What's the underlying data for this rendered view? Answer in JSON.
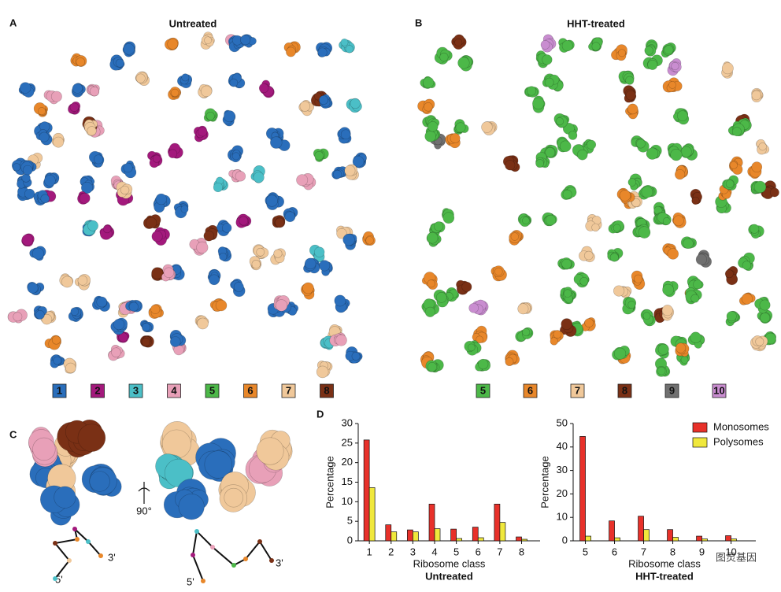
{
  "panels": {
    "A": {
      "label": "A",
      "title": "Untreated",
      "legend": [
        {
          "label": "1",
          "color": "#2a6ebb"
        },
        {
          "label": "2",
          "color": "#a3197c"
        },
        {
          "label": "3",
          "color": "#4bbfc7"
        },
        {
          "label": "4",
          "color": "#e8a0b8"
        },
        {
          "label": "5",
          "color": "#4cb848"
        },
        {
          "label": "6",
          "color": "#e8872a"
        },
        {
          "label": "7",
          "color": "#f0c89a"
        },
        {
          "label": "8",
          "color": "#7a3015"
        }
      ]
    },
    "B": {
      "label": "B",
      "title": "HHT-treated",
      "legend": [
        {
          "label": "5",
          "color": "#4cb848"
        },
        {
          "label": "6",
          "color": "#e8872a"
        },
        {
          "label": "7",
          "color": "#f0c89a"
        },
        {
          "label": "8",
          "color": "#7a3015"
        },
        {
          "label": "9",
          "color": "#707070"
        },
        {
          "label": "10",
          "color": "#c98dd0"
        }
      ]
    },
    "C": {
      "label": "C",
      "rotation": "90°",
      "end3": "3'",
      "end5": "5'"
    },
    "D": {
      "label": "D"
    }
  },
  "watermark": "图灵基因",
  "chart_data": [
    {
      "type": "bar",
      "title": "Untreated",
      "xlabel": "Ribosome class",
      "ylabel": "Percentage",
      "categories": [
        "1",
        "2",
        "3",
        "4",
        "5",
        "6",
        "7",
        "8"
      ],
      "series": [
        {
          "color": "#e8312a",
          "values": [
            25.8,
            4.1,
            2.8,
            9.4,
            3.0,
            3.5,
            9.4,
            1.0
          ]
        },
        {
          "color": "#f0e83c",
          "values": [
            13.6,
            2.3,
            2.3,
            3.1,
            0.6,
            0.8,
            4.7,
            0.4
          ]
        }
      ],
      "ylim": [
        0,
        30
      ],
      "yticks": [
        0,
        5,
        10,
        15,
        20,
        25,
        30
      ]
    },
    {
      "type": "bar",
      "title": "HHT-treated",
      "xlabel": "Ribosome class",
      "ylabel": "Percentage",
      "categories": [
        "5",
        "6",
        "7",
        "8",
        "9",
        "10"
      ],
      "series": [
        {
          "name": "Monosomes",
          "color": "#e8312a",
          "values": [
            44.5,
            8.5,
            10.5,
            4.8,
            2.0,
            2.2
          ]
        },
        {
          "name": "Polysomes",
          "color": "#f0e83c",
          "values": [
            2.0,
            1.3,
            4.8,
            1.5,
            0.8,
            0.8
          ]
        }
      ],
      "ylim": [
        0,
        50
      ],
      "yticks": [
        0,
        10,
        20,
        30,
        40,
        50
      ],
      "legend": "upper right"
    }
  ]
}
